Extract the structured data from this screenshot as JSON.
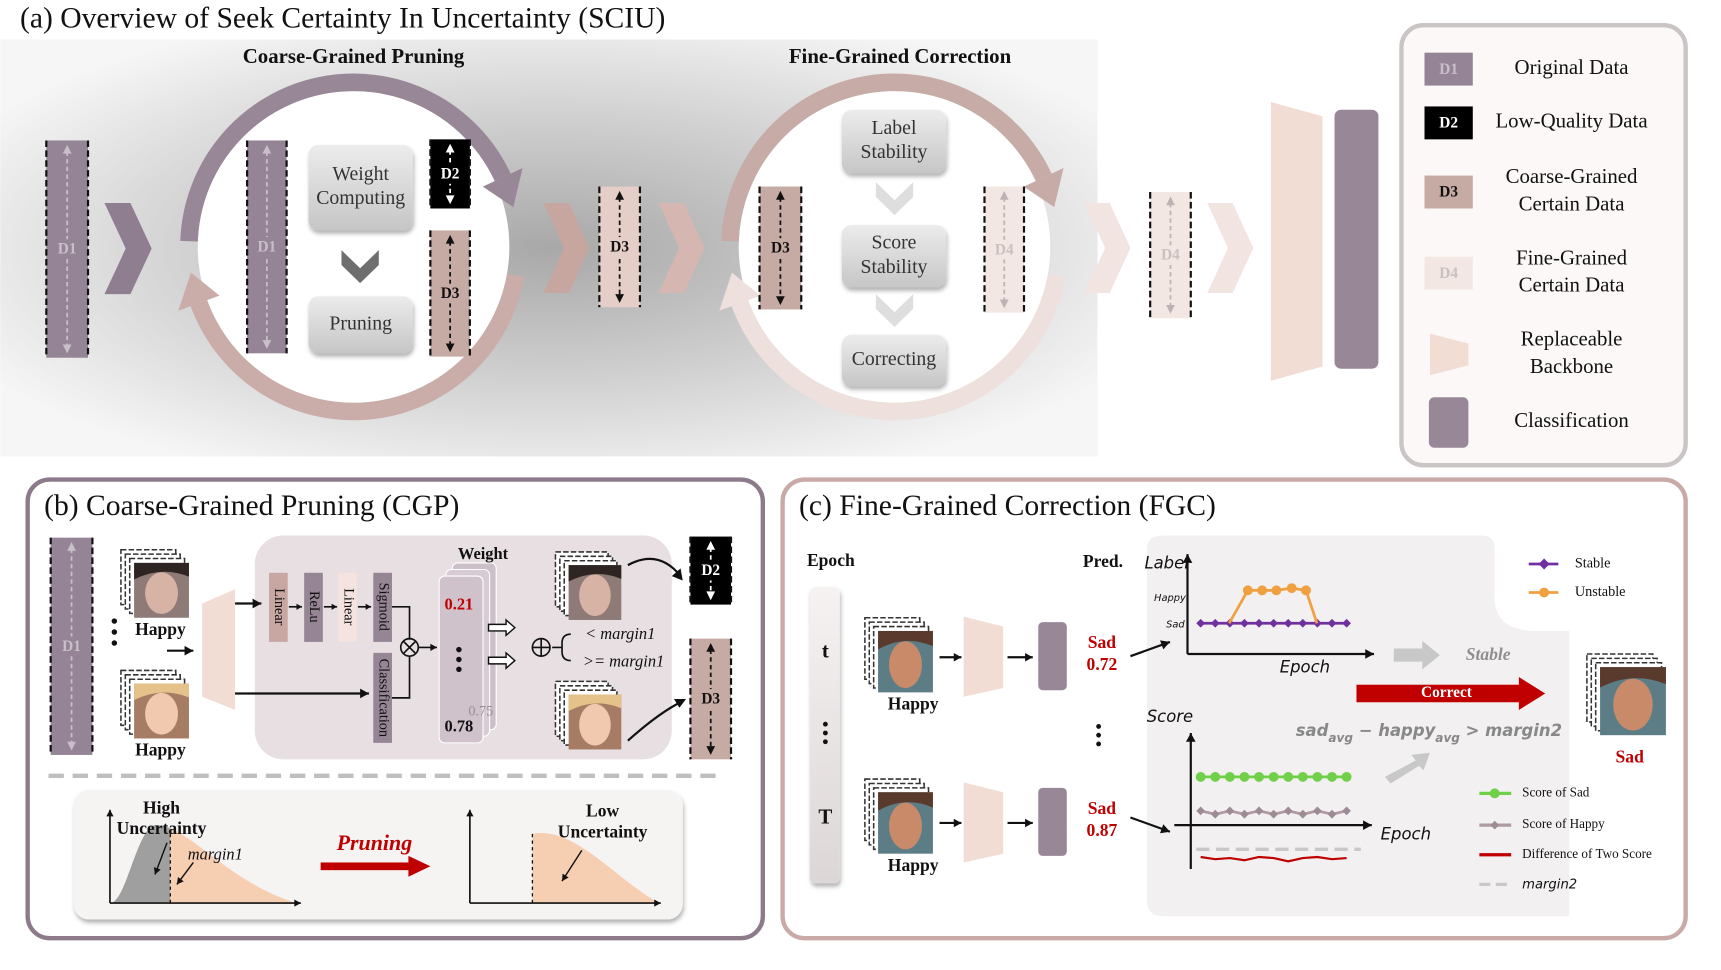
{
  "panel_a": {
    "title": "(a) Overview of Seek Certainty In Uncertainty (SCIU)",
    "stage_titles": [
      "Coarse-Grained Pruning",
      "Fine-Grained Correction"
    ],
    "cgp_blocks": [
      [
        "Weight",
        "Computing"
      ],
      [
        "Pruning"
      ]
    ],
    "fgc_blocks": [
      [
        "Label",
        "Stability"
      ],
      [
        "Score",
        "Stability"
      ],
      [
        "Correcting"
      ]
    ],
    "data_tags": [
      "D1",
      "D2",
      "D3",
      "D4"
    ],
    "legend": [
      {
        "tag": "D1",
        "label": [
          "Original Data"
        ]
      },
      {
        "tag": "D2",
        "label": [
          "Low-Quality Data"
        ]
      },
      {
        "tag": "D3",
        "label": [
          "Coarse-Grained",
          "Certain Data"
        ]
      },
      {
        "tag": "D4",
        "label": [
          "Fine-Grained",
          "Certain Data"
        ]
      },
      {
        "label": [
          "Replaceable",
          "Backbone"
        ]
      },
      {
        "label": [
          "Classification"
        ]
      }
    ]
  },
  "panel_b": {
    "title": "(b) Coarse-Grained Pruning (CGP)",
    "input_labels": [
      "Happy",
      "Happy"
    ],
    "layers": [
      "Linear",
      "ReLu",
      "Linear",
      "Sigmoid"
    ],
    "classifier": "Classification",
    "weight_title": "Weight",
    "weights": [
      0.21,
      0.78,
      0.75
    ],
    "thresholds": [
      "< margin1",
      ">= margin1"
    ],
    "high_uncertainty": [
      "High",
      "Uncertainty"
    ],
    "margin": "margin1",
    "action": "Pruning",
    "low_uncertainty": [
      "Low",
      "Uncertainty"
    ]
  },
  "panel_c": {
    "title": "(c) Fine-Grained Correction (FGC)",
    "epoch_header": "Epoch",
    "pred_header": "Pred.",
    "rows": [
      {
        "epoch": "t",
        "input": "Happy",
        "pred": "Sad",
        "score": 0.72
      },
      {
        "epoch": "T",
        "input": "Happy",
        "pred": "Sad",
        "score": 0.87
      }
    ],
    "label_chart": {
      "y_title": "Label",
      "y_labels": [
        "Happy",
        "Sad"
      ],
      "x_title": "Epoch",
      "legend": [
        "Stable",
        "Unstable"
      ]
    },
    "score_chart": {
      "y_title": "Score",
      "x_title": "Epoch",
      "legend": [
        "Score of Sad",
        "Score of Happy",
        "Difference of  Two Score",
        "margin2"
      ]
    },
    "stable_tag": "Stable",
    "correct_tag": "Correct",
    "condition": {
      "left": "sad",
      "left_sub": "avg",
      "op": " − ",
      "right": "happy",
      "right_sub": "avg",
      "tail": " > margin2"
    },
    "output": "Sad"
  }
}
